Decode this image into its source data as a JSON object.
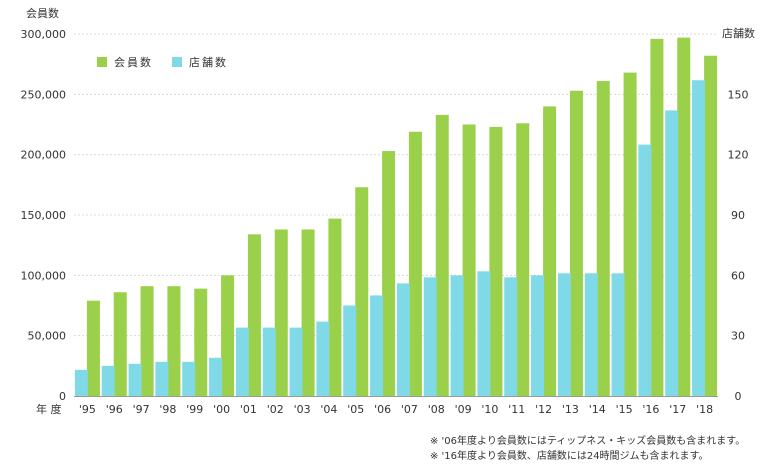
{
  "chart_data": {
    "type": "bar",
    "categories": [
      "'95",
      "'96",
      "'97",
      "'98",
      "'99",
      "'00",
      "'01",
      "'02",
      "'03",
      "'04",
      "'05",
      "'06",
      "'07",
      "'08",
      "'09",
      "'10",
      "'11",
      "'12",
      "'13",
      "'14",
      "'15",
      "'16",
      "'17",
      "'18"
    ],
    "xlabel": "年 度",
    "y_left": {
      "label": "会員数",
      "ylim": [
        0,
        300000
      ],
      "ticks": [
        "0",
        "50,000",
        "100,000",
        "150,000",
        "200,000",
        "250,000",
        "300,000"
      ]
    },
    "y_right": {
      "label": "店舗数",
      "ylim": [
        0,
        180
      ],
      "ticks": [
        "0",
        "30",
        "60",
        "90",
        "120",
        "150"
      ]
    },
    "grid": true,
    "legend_position": "top-left",
    "series": [
      {
        "name": "会員数",
        "axis": "left",
        "color": "#9ad04a",
        "values": [
          79000,
          86000,
          91000,
          91000,
          89000,
          100000,
          134000,
          138000,
          138000,
          147000,
          173000,
          203000,
          219000,
          233000,
          225000,
          223000,
          226000,
          240000,
          253000,
          261000,
          268000,
          296000,
          297000,
          282000
        ]
      },
      {
        "name": "店舗数",
        "axis": "right",
        "color": "#7fd9e6",
        "values": [
          13,
          15,
          16,
          17,
          17,
          19,
          34,
          34,
          34,
          37,
          45,
          50,
          56,
          59,
          60,
          62,
          59,
          60,
          61,
          61,
          61,
          125,
          142,
          157
        ]
      }
    ]
  },
  "notes": [
    "※ '06年度より会員数にはティップネス・キッズ会員数も含まれます。",
    "※ '16年度より会員数、店舗数には24時間ジムも含まれます。"
  ]
}
